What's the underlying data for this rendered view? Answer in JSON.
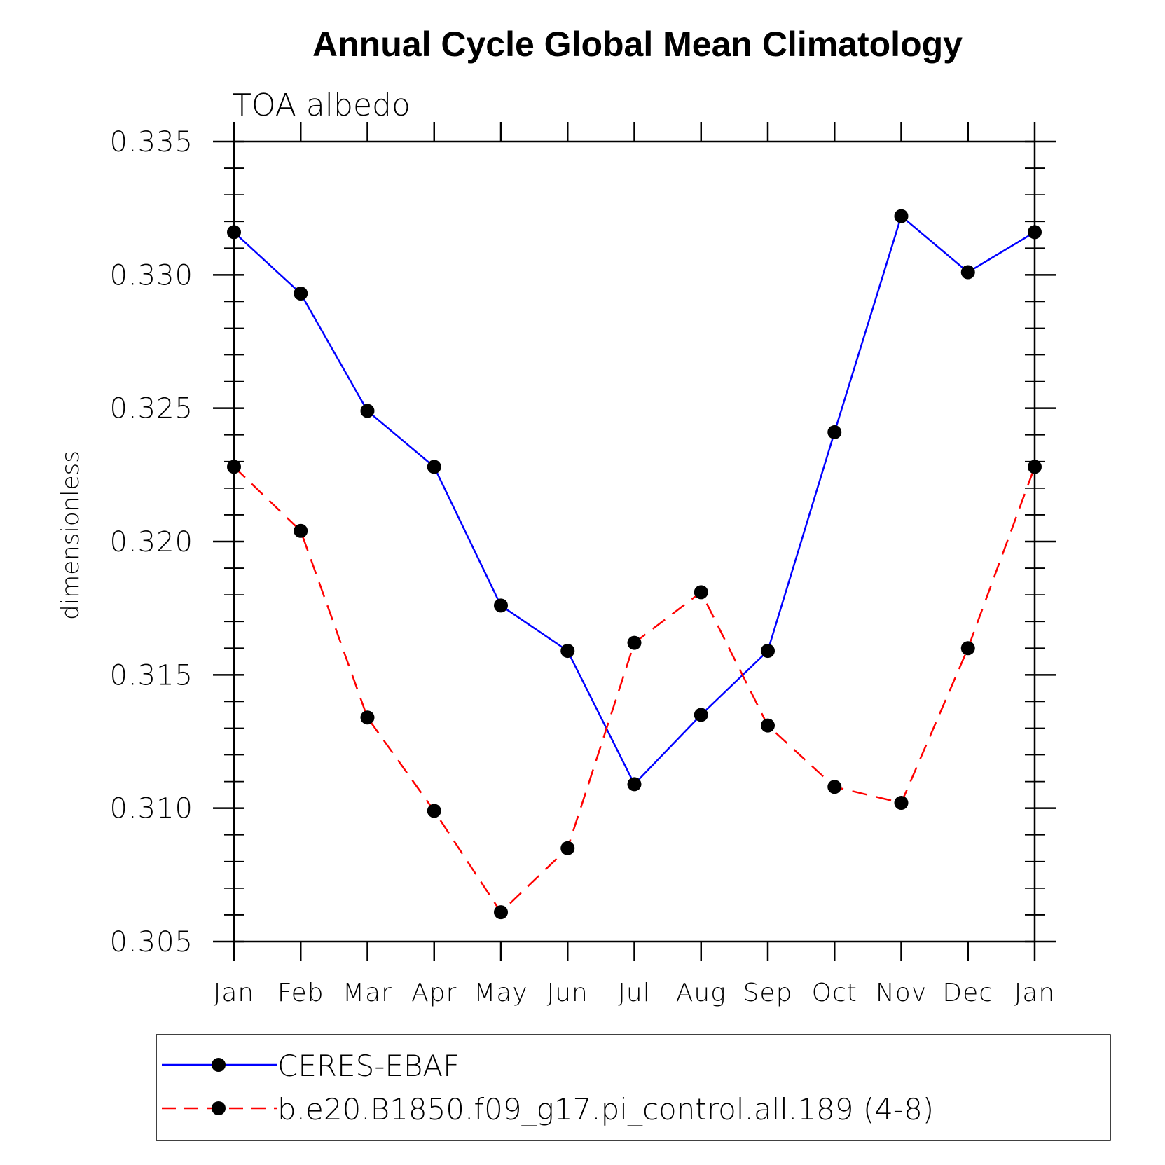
{
  "chart_data": {
    "type": "line",
    "title": "Annual Cycle Global Mean Climatology",
    "subtitle": "TOA albedo",
    "xlabel": "",
    "ylabel": "dimensionless",
    "categories": [
      "Jan",
      "Feb",
      "Mar",
      "Apr",
      "May",
      "Jun",
      "Jul",
      "Aug",
      "Sep",
      "Oct",
      "Nov",
      "Dec",
      "Jan"
    ],
    "ylim": [
      0.305,
      0.335
    ],
    "yticks": [
      "0.305",
      "0.310",
      "0.315",
      "0.320",
      "0.325",
      "0.330",
      "0.335"
    ],
    "grid": false,
    "legend_position": "bottom",
    "series": [
      {
        "name": "CERES-EBAF",
        "color": "#0000ff",
        "style": "solid",
        "marker": "filled-circle",
        "values": [
          0.3316,
          0.3293,
          0.3249,
          0.3228,
          0.3176,
          0.3159,
          0.3109,
          0.3135,
          0.3159,
          0.3241,
          0.3322,
          0.3301,
          0.3316
        ]
      },
      {
        "name": "b.e20.B1850.f09_g17.pi_control.all.189 (4-8)",
        "color": "#ff0000",
        "style": "dashed",
        "marker": "filled-circle",
        "values": [
          0.3228,
          0.3204,
          0.3134,
          0.3099,
          0.3061,
          0.3085,
          0.3162,
          0.3181,
          0.3131,
          0.3108,
          0.3102,
          0.316,
          0.3228
        ]
      }
    ]
  }
}
